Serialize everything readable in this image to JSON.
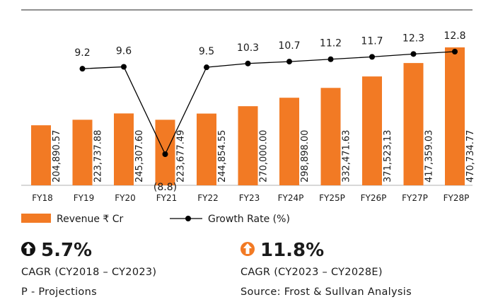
{
  "chart_data": {
    "type": "bar",
    "categories": [
      "FY18",
      "FY19",
      "FY20",
      "FY21",
      "FY22",
      "FY23",
      "FY24P",
      "FY25P",
      "FY26P",
      "FY27P",
      "FY28P"
    ],
    "series": [
      {
        "name": "Revenue ₹ Cr",
        "type": "bar",
        "color": "#f27a24",
        "values": [
          204890.57,
          223737.88,
          245307.6,
          223677.49,
          244854.55,
          270000.0,
          298898.0,
          332471.63,
          371523.13,
          417359.03,
          470734.77
        ],
        "value_labels": [
          "204,890.57",
          "223,737.88",
          "245,307.60",
          "223,677.49",
          "244,854.55",
          "270,000.00",
          "298,898.00",
          "332,471.63",
          "371,523,13",
          "417,359.03",
          "470,734.77"
        ]
      },
      {
        "name": "Growth Rate (%)",
        "type": "line",
        "color": "#000000",
        "values": [
          null,
          9.2,
          9.6,
          -8.8,
          9.5,
          10.3,
          10.7,
          11.2,
          11.7,
          12.3,
          12.8
        ],
        "value_labels": [
          null,
          "9.2",
          "9.6",
          "(8.8)",
          "9.5",
          "10.3",
          "10.7",
          "11.2",
          "11.7",
          "12.3",
          "12.8"
        ]
      }
    ]
  },
  "highlights": [
    {
      "value": "5.7%",
      "caption": "CAGR (CY2018 – CY2023)",
      "note": "P - Projections",
      "icon_color": "#111111"
    },
    {
      "value": "11.8%",
      "caption": "CAGR (CY2023 – CY2028E)",
      "note": "Source: Frost & Sullvan Analysis",
      "icon_color": "#f27a24"
    }
  ]
}
